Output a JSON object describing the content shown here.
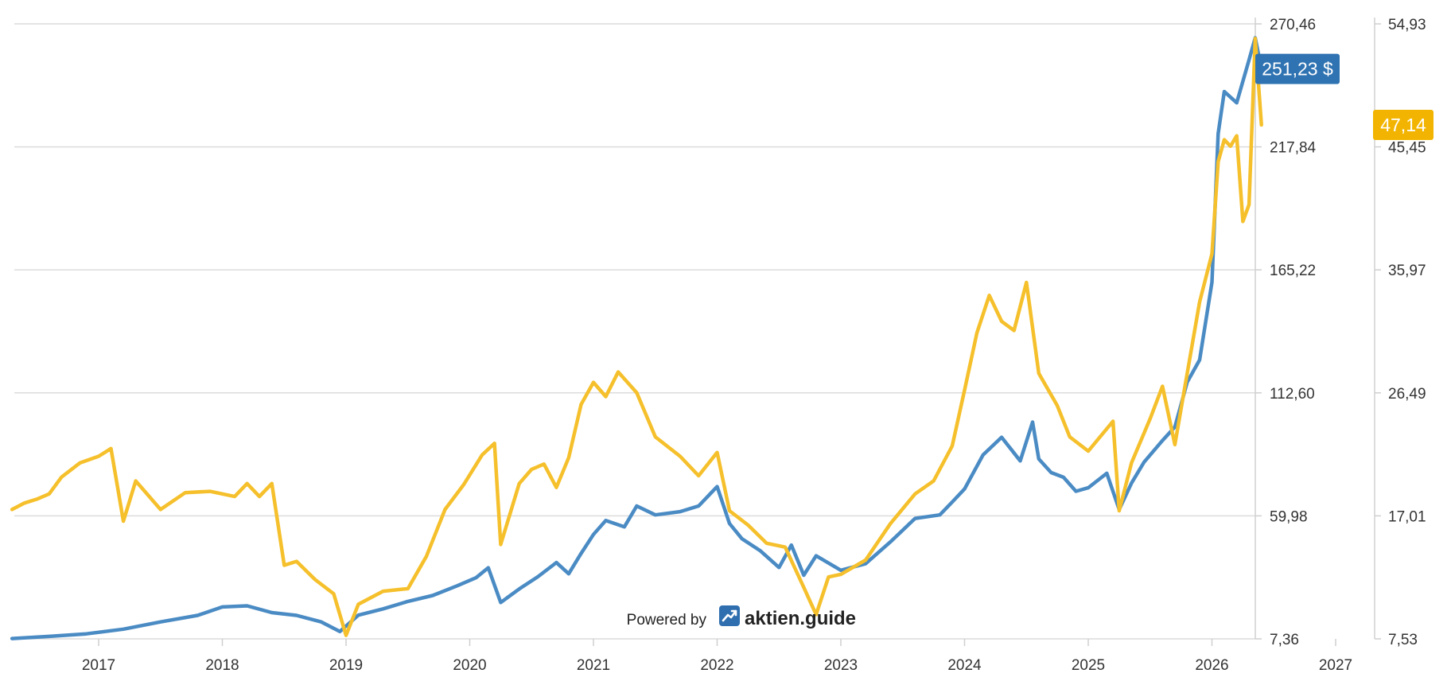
{
  "chart_data": {
    "type": "line",
    "title": "",
    "xlabel": "",
    "ylabel": "",
    "x_ticks": [
      "2017",
      "2018",
      "2019",
      "2020",
      "2021",
      "2022",
      "2023",
      "2024",
      "2025",
      "2026",
      "2027"
    ],
    "xlim": [
      2016.3,
      2027.0
    ],
    "y_left_ticks": [
      "270,46",
      "217,84",
      "165,22",
      "112,60",
      "59,98",
      "7,36"
    ],
    "y_left_lim": [
      7.36,
      270.46
    ],
    "y_right_ticks": [
      "54,93",
      "45,45",
      "35,97",
      "26,49",
      "17,01",
      "7,53"
    ],
    "y_right_lim": [
      7.53,
      54.93
    ],
    "grid": true,
    "series": [
      {
        "axis": "left",
        "color": "#4a8bc4",
        "last_label": "251,23 $",
        "points": [
          [
            2016.3,
            7.5
          ],
          [
            2016.6,
            8.4
          ],
          [
            2016.9,
            9.5
          ],
          [
            2017.2,
            11.5
          ],
          [
            2017.5,
            14.6
          ],
          [
            2017.8,
            17.4
          ],
          [
            2018.0,
            21.0
          ],
          [
            2018.2,
            21.5
          ],
          [
            2018.4,
            18.6
          ],
          [
            2018.6,
            17.4
          ],
          [
            2018.8,
            14.6
          ],
          [
            2018.95,
            10.5
          ],
          [
            2019.1,
            17.5
          ],
          [
            2019.3,
            20.2
          ],
          [
            2019.5,
            23.4
          ],
          [
            2019.7,
            25.9
          ],
          [
            2019.9,
            30.1
          ],
          [
            2020.05,
            33.5
          ],
          [
            2020.15,
            37.8
          ],
          [
            2020.25,
            22.9
          ],
          [
            2020.4,
            28.7
          ],
          [
            2020.55,
            33.9
          ],
          [
            2020.7,
            40.0
          ],
          [
            2020.8,
            35.2
          ],
          [
            2020.9,
            43.9
          ],
          [
            2021.0,
            52.0
          ],
          [
            2021.1,
            58.0
          ],
          [
            2021.25,
            55.3
          ],
          [
            2021.35,
            64.2
          ],
          [
            2021.5,
            60.4
          ],
          [
            2021.7,
            61.8
          ],
          [
            2021.85,
            64.2
          ],
          [
            2022.0,
            72.5
          ],
          [
            2022.1,
            56.7
          ],
          [
            2022.2,
            50.2
          ],
          [
            2022.35,
            45.0
          ],
          [
            2022.5,
            37.9
          ],
          [
            2022.6,
            47.5
          ],
          [
            2022.7,
            34.6
          ],
          [
            2022.8,
            42.9
          ],
          [
            2023.0,
            36.7
          ],
          [
            2023.2,
            39.5
          ],
          [
            2023.4,
            48.8
          ],
          [
            2023.6,
            58.9
          ],
          [
            2023.8,
            60.4
          ],
          [
            2023.9,
            65.9
          ],
          [
            2024.0,
            71.5
          ],
          [
            2024.15,
            86.1
          ],
          [
            2024.3,
            93.6
          ],
          [
            2024.45,
            83.5
          ],
          [
            2024.55,
            100.1
          ],
          [
            2024.6,
            84.3
          ],
          [
            2024.7,
            78.5
          ],
          [
            2024.8,
            76.5
          ],
          [
            2024.9,
            70.5
          ],
          [
            2025.0,
            72.0
          ],
          [
            2025.15,
            78.2
          ],
          [
            2025.25,
            62.7
          ],
          [
            2025.35,
            74.0
          ],
          [
            2025.45,
            82.9
          ],
          [
            2025.6,
            92.2
          ],
          [
            2025.7,
            98.0
          ],
          [
            2025.8,
            117.2
          ],
          [
            2025.9,
            126.7
          ],
          [
            2026.0,
            159.9
          ],
          [
            2026.05,
            223.5
          ],
          [
            2026.1,
            241.5
          ],
          [
            2026.2,
            236.7
          ],
          [
            2026.3,
            255.0
          ],
          [
            2026.35,
            264.5
          ],
          [
            2026.4,
            251.2
          ]
        ]
      },
      {
        "axis": "right",
        "color": "#f5c02b",
        "last_label": "47,14",
        "points": [
          [
            2016.3,
            17.5
          ],
          [
            2016.4,
            18.0
          ],
          [
            2016.5,
            18.3
          ],
          [
            2016.6,
            18.7
          ],
          [
            2016.7,
            20.0
          ],
          [
            2016.85,
            21.1
          ],
          [
            2017.0,
            21.6
          ],
          [
            2017.1,
            22.2
          ],
          [
            2017.2,
            16.6
          ],
          [
            2017.3,
            19.7
          ],
          [
            2017.5,
            17.5
          ],
          [
            2017.7,
            18.8
          ],
          [
            2017.9,
            18.9
          ],
          [
            2018.1,
            18.5
          ],
          [
            2018.2,
            19.5
          ],
          [
            2018.3,
            18.5
          ],
          [
            2018.4,
            19.5
          ],
          [
            2018.5,
            13.2
          ],
          [
            2018.6,
            13.5
          ],
          [
            2018.75,
            12.1
          ],
          [
            2018.9,
            11.0
          ],
          [
            2019.0,
            7.8
          ],
          [
            2019.1,
            10.2
          ],
          [
            2019.3,
            11.2
          ],
          [
            2019.5,
            11.4
          ],
          [
            2019.65,
            13.9
          ],
          [
            2019.8,
            17.5
          ],
          [
            2019.95,
            19.4
          ],
          [
            2020.1,
            21.7
          ],
          [
            2020.2,
            22.6
          ],
          [
            2020.25,
            14.8
          ],
          [
            2020.4,
            19.5
          ],
          [
            2020.5,
            20.6
          ],
          [
            2020.6,
            21.0
          ],
          [
            2020.7,
            19.2
          ],
          [
            2020.8,
            21.5
          ],
          [
            2020.9,
            25.6
          ],
          [
            2021.0,
            27.3
          ],
          [
            2021.1,
            26.2
          ],
          [
            2021.2,
            28.1
          ],
          [
            2021.35,
            26.5
          ],
          [
            2021.5,
            23.1
          ],
          [
            2021.7,
            21.6
          ],
          [
            2021.85,
            20.1
          ],
          [
            2022.0,
            21.9
          ],
          [
            2022.1,
            17.4
          ],
          [
            2022.25,
            16.3
          ],
          [
            2022.4,
            14.9
          ],
          [
            2022.55,
            14.6
          ],
          [
            2022.7,
            11.5
          ],
          [
            2022.8,
            9.4
          ],
          [
            2022.9,
            12.3
          ],
          [
            2023.0,
            12.5
          ],
          [
            2023.2,
            13.6
          ],
          [
            2023.4,
            16.4
          ],
          [
            2023.6,
            18.7
          ],
          [
            2023.75,
            19.7
          ],
          [
            2023.9,
            22.4
          ],
          [
            2024.0,
            26.7
          ],
          [
            2024.1,
            31.1
          ],
          [
            2024.2,
            34.0
          ],
          [
            2024.3,
            32.0
          ],
          [
            2024.4,
            31.3
          ],
          [
            2024.5,
            35.0
          ],
          [
            2024.6,
            28.0
          ],
          [
            2024.75,
            25.5
          ],
          [
            2024.85,
            23.1
          ],
          [
            2025.0,
            22.0
          ],
          [
            2025.2,
            24.3
          ],
          [
            2025.25,
            17.4
          ],
          [
            2025.35,
            21.1
          ],
          [
            2025.5,
            24.5
          ],
          [
            2025.6,
            27.0
          ],
          [
            2025.7,
            22.5
          ],
          [
            2025.8,
            28.0
          ],
          [
            2025.9,
            33.5
          ],
          [
            2026.0,
            37.2
          ],
          [
            2026.05,
            44.3
          ],
          [
            2026.1,
            46.0
          ],
          [
            2026.15,
            45.5
          ],
          [
            2026.2,
            46.3
          ],
          [
            2026.25,
            39.7
          ],
          [
            2026.3,
            41.0
          ],
          [
            2026.35,
            53.8
          ],
          [
            2026.4,
            47.14
          ]
        ]
      }
    ]
  },
  "watermark": {
    "prefix": "Powered by",
    "brand": "aktien.guide",
    "icon": "trend-up-icon"
  }
}
